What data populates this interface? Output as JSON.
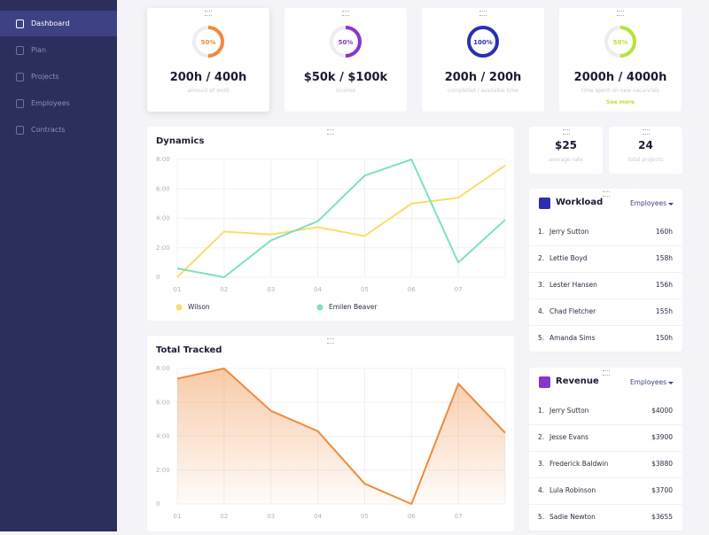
{
  "sidebar": {
    "items": [
      "Dashboard",
      "Plan",
      "Projects",
      "Employees",
      "Contracts"
    ]
  },
  "stats": [
    {
      "percent": 50,
      "percent_label": "50%",
      "value": "200h / 400h",
      "caption": "amount of work",
      "color": "#f08a3c"
    },
    {
      "percent": 50,
      "percent_label": "50%",
      "value": "$50k / $100k",
      "caption": "income",
      "color": "#8a35c9"
    },
    {
      "percent": 100,
      "percent_label": "100%",
      "value": "200h / 200h",
      "caption": "completed / available time",
      "color": "#2a2fb4"
    },
    {
      "percent": 50,
      "percent_label": "50%",
      "value": "2000h / 4000h",
      "caption": "time spent on new vacancies",
      "color": "#b5e33c",
      "link": "See more"
    }
  ],
  "small_stats": [
    {
      "value": "$25",
      "caption": "average rate"
    },
    {
      "value": "24",
      "caption": "total projects"
    }
  ],
  "workload": {
    "title": "Workload",
    "filter": "Employees",
    "color": "#2a2fb4",
    "rows": [
      [
        "1.",
        "Jerry Sutton",
        "160h"
      ],
      [
        "2.",
        "Lettie Boyd",
        "158h"
      ],
      [
        "3.",
        "Lester Hansen",
        "156h"
      ],
      [
        "4.",
        "Chad Fletcher",
        "155h"
      ],
      [
        "5.",
        "Amanda Sims",
        "150h"
      ]
    ]
  },
  "revenue": {
    "title": "Revenue",
    "filter": "Employees",
    "color": "#8a35c9",
    "rows": [
      [
        "1.",
        "Jerry Sutton",
        "$4000"
      ],
      [
        "2.",
        "Jesse Evans",
        "$3900"
      ],
      [
        "3.",
        "Frederick Baldwin",
        "$3880"
      ],
      [
        "4.",
        "Lula Robinson",
        "$3700"
      ],
      [
        "5.",
        "Sadie Newton",
        "$3655"
      ]
    ]
  },
  "chart_data": [
    {
      "type": "line",
      "title": "Dynamics",
      "categories": [
        "01",
        "02",
        "03",
        "04",
        "05",
        "06",
        "07",
        null
      ],
      "ylim": [
        0,
        8
      ],
      "yticks": [
        0,
        {
          "value": 2,
          "label": "2:00"
        },
        {
          "value": 4,
          "label": "4:00"
        },
        {
          "value": 6,
          "label": "6:00"
        },
        {
          "value": 8,
          "label": "8:00"
        }
      ],
      "grid": true,
      "series": [
        {
          "name": "Wilson",
          "color": "#f8dd6a",
          "values": [
            0,
            3.1,
            2.9,
            3.4,
            2.8,
            5.0,
            5.4,
            7.6
          ]
        },
        {
          "name": "Emilen Beaver",
          "color": "#7de0c4",
          "values": [
            0.6,
            0,
            2.5,
            3.8,
            6.9,
            8.0,
            1.0,
            3.9
          ]
        }
      ]
    },
    {
      "type": "area",
      "title": "Total Tracked",
      "categories": [
        "01",
        "02",
        "03",
        "04",
        "05",
        "06",
        "07",
        null
      ],
      "ylim": [
        0,
        8
      ],
      "yticks": [
        0,
        {
          "value": 2,
          "label": "2:00"
        },
        {
          "value": 4,
          "label": "4:00"
        },
        {
          "value": 6,
          "label": "6:00"
        },
        {
          "value": 8,
          "label": "8:00"
        }
      ],
      "grid": true,
      "series": [
        {
          "color": "#f08a3c",
          "values": [
            7.4,
            8.0,
            5.5,
            4.3,
            1.2,
            0,
            7.1,
            4.2
          ]
        }
      ]
    }
  ]
}
